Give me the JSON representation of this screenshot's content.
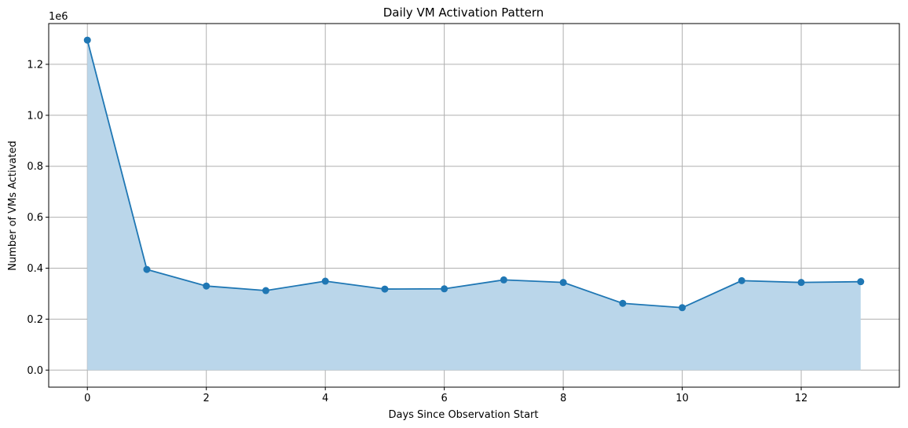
{
  "chart_data": {
    "type": "area",
    "title": "Daily VM Activation Pattern",
    "xlabel": "Days Since Observation Start",
    "ylabel": "Number of VMs Activated",
    "y_offset_label": "1e6",
    "x": [
      0,
      1,
      2,
      3,
      4,
      5,
      6,
      7,
      8,
      9,
      10,
      11,
      12,
      13
    ],
    "series": [
      {
        "values": [
          1295000,
          395000,
          330000,
          312000,
          349000,
          318000,
          319000,
          354000,
          344000,
          262000,
          245000,
          351000,
          344000,
          347000
        ]
      }
    ],
    "xlim": [
      -0.65,
      13.65
    ],
    "ylim": [
      -0.067,
      1.36
    ],
    "y_scale": 1000000,
    "x_ticks": [
      0,
      2,
      4,
      6,
      8,
      10,
      12
    ],
    "x_tick_labels": [
      "0",
      "2",
      "4",
      "6",
      "8",
      "10",
      "12"
    ],
    "y_ticks": [
      0,
      0.2,
      0.4,
      0.6,
      0.8,
      1.0,
      1.2
    ],
    "y_tick_labels": [
      "0.0",
      "0.2",
      "0.4",
      "0.6",
      "0.8",
      "1.0",
      "1.2"
    ],
    "grid": true,
    "markers": true,
    "colors": {
      "line": "#1f77b4",
      "fill": "#bad6ea",
      "grid": "#b0b0b0",
      "axis": "#000000"
    }
  }
}
